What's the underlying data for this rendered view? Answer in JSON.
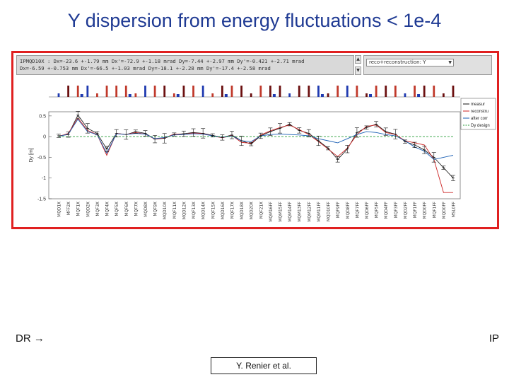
{
  "page": {
    "title": "Y dispersion from energy fluctuations < 1e-4",
    "left_label": "DR",
    "left_arrow": "→",
    "right_label": "IP",
    "credit": "Y. Renier et al."
  },
  "panel": {
    "info_line1": "IPMQD10X : Dx=-23.6 +-1.79 mm Dx'=-72.9 +-1.18 mrad Dy=-7.44 +-2.97 mm Dy'=-0.421 +-2.71 mrad",
    "info_line2": "Dx=-6.59 +-0.753 mm Dx'=-66.5 +-1.03 mrad Dy=-18.1 +-2.28 mm Dy'=-17.4 +-2.58 mrad",
    "select_value": "reco+reconstruction: Y",
    "scroll_up": "▲",
    "scroll_down": "▼",
    "colors": {
      "measured": "#111111",
      "reconstructed": "#cc2222",
      "after_correction": "#1a5fb4",
      "design": "#2a9d3a",
      "frame": "#e02020"
    }
  },
  "chart_data": {
    "type": "line",
    "title": "",
    "xlabel": "",
    "ylabel": "Dy [m]",
    "ylim": [
      -1.5,
      0.6
    ],
    "yticks": [
      0.5,
      0,
      -0.5,
      -1,
      -1.5
    ],
    "ytick_labels": [
      "0.5",
      "0",
      "-0.5",
      "-1",
      "-1.5"
    ],
    "grid": false,
    "legend": {
      "placement": "top-right",
      "entries": [
        "measur",
        "reconstru",
        "after corr",
        "Dy design"
      ]
    },
    "magnets": [
      "MQD1X",
      "MFF2X",
      "MQF1X",
      "MQD2X",
      "MQF3X",
      "MQF4X",
      "MQF5X",
      "MQF6X",
      "MQF7X",
      "MQD8X",
      "MQF9X",
      "MQD10X",
      "MQF11X",
      "MQD12X",
      "MQF13X",
      "MQD14X",
      "MQF15X",
      "MQD16X",
      "MQF17X",
      "MQD18X",
      "MQD20X",
      "MQF21X",
      "MQM16FF",
      "MQM15FF",
      "MQM14FF",
      "MQM13FF",
      "MQM12FF",
      "MQM11FF",
      "MQD10FF",
      "MQF9FF",
      "MQD8FF",
      "MQF7FF",
      "MQD6FF",
      "MQF5FF",
      "MQD4FF",
      "MQF3FF",
      "MQD2FF",
      "MQF1FF",
      "MQD0FF",
      "MQF1FF",
      "MQD0FF",
      "MSL0FF"
    ],
    "series": [
      {
        "name": "measur",
        "values": [
          0.02,
          0.05,
          0.52,
          0.2,
          0.08,
          -0.3,
          0.08,
          0.05,
          0.12,
          0.08,
          -0.06,
          -0.04,
          0.05,
          0.07,
          0.1,
          0.08,
          0.03,
          -0.02,
          0.04,
          -0.1,
          -0.18,
          0.02,
          0.12,
          0.2,
          0.3,
          0.15,
          0.08,
          -0.1,
          -0.28,
          -0.55,
          -0.3,
          0.1,
          0.22,
          0.3,
          0.12,
          0.06,
          -0.12,
          -0.2,
          -0.32,
          -0.5,
          -0.75,
          -1.0
        ]
      },
      {
        "name": "reconstru",
        "values": [
          0.0,
          0.08,
          0.45,
          0.15,
          0.05,
          -0.45,
          0.08,
          0.05,
          0.1,
          0.06,
          -0.06,
          -0.03,
          0.06,
          0.05,
          0.09,
          0.07,
          0.02,
          -0.03,
          0.03,
          -0.14,
          -0.16,
          0.04,
          0.14,
          0.22,
          0.28,
          0.17,
          0.05,
          -0.12,
          -0.3,
          -0.48,
          -0.28,
          0.05,
          0.25,
          0.28,
          0.1,
          0.05,
          -0.1,
          -0.15,
          -0.2,
          -0.55,
          -1.35,
          -1.35
        ]
      },
      {
        "name": "after corr",
        "values": [
          0.0,
          0.06,
          0.42,
          0.12,
          0.05,
          -0.4,
          0.07,
          0.05,
          0.08,
          0.06,
          -0.05,
          -0.02,
          0.04,
          0.05,
          0.07,
          0.06,
          0.02,
          -0.02,
          0.02,
          -0.1,
          -0.12,
          0.02,
          0.05,
          0.06,
          0.05,
          0.04,
          0.02,
          -0.05,
          -0.1,
          -0.15,
          -0.05,
          0.05,
          0.12,
          0.1,
          0.05,
          0.02,
          -0.1,
          -0.25,
          -0.35,
          -0.55,
          -0.5,
          -0.45
        ]
      },
      {
        "name": "Dy design",
        "values": [
          0,
          0,
          0,
          0,
          0,
          0,
          0,
          0,
          0,
          0,
          0,
          0,
          0,
          0,
          0,
          0,
          0,
          0,
          0,
          0,
          0,
          0,
          0,
          0,
          0,
          0,
          0,
          0,
          0,
          0,
          0,
          0,
          0,
          0,
          0,
          0,
          0,
          0,
          0,
          0,
          0,
          0
        ]
      }
    ]
  }
}
